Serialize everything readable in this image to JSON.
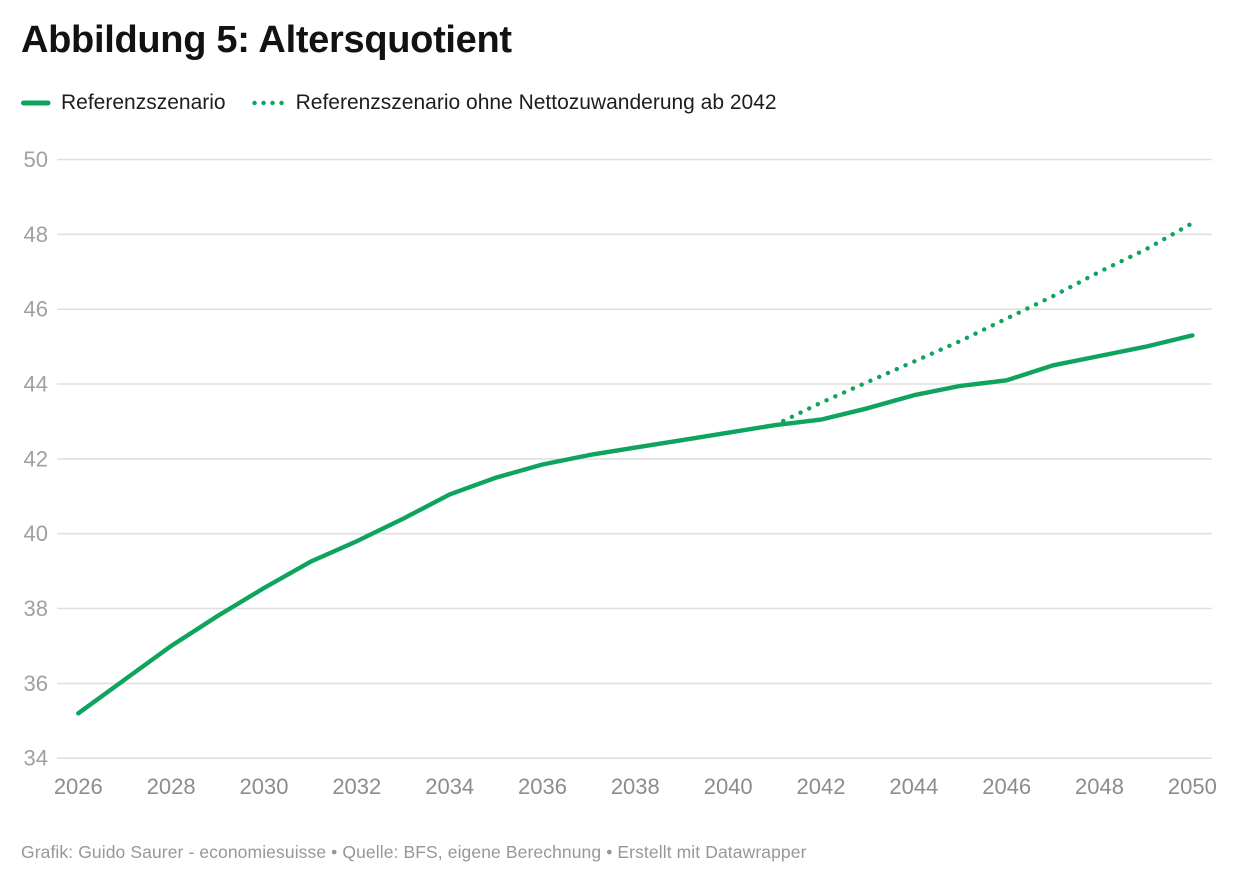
{
  "header": {
    "title": "Abbildung 5: Altersquotient"
  },
  "legend": {
    "items": [
      {
        "label": "Referenzszenario",
        "swatch": "solid-line"
      },
      {
        "label": "Referenzszenario ohne Nettozuwanderung ab 2042",
        "swatch": "dotted-line"
      }
    ]
  },
  "colors": {
    "line_green": "#0fa45e",
    "grid": "#e0e0e0",
    "y_tick_label": "#a0a0a0",
    "x_tick_label": "#8c8c8c",
    "title_text": "#121212",
    "footer_text": "#979797"
  },
  "chart_data": {
    "type": "line",
    "title": "Abbildung 5: Altersquotient",
    "xlabel": "",
    "ylabel": "",
    "ylim": [
      34,
      50
    ],
    "xlim": [
      2026,
      2050
    ],
    "grid": "horizontal-only",
    "legend_position": "top",
    "y_ticks": [
      34,
      36,
      38,
      40,
      42,
      44,
      46,
      48,
      50
    ],
    "x_ticks": [
      2026,
      2028,
      2030,
      2032,
      2034,
      2036,
      2038,
      2040,
      2042,
      2044,
      2046,
      2048,
      2050
    ],
    "series": [
      {
        "name": "Referenzszenario",
        "style": "solid",
        "x": [
          2026,
          2027,
          2028,
          2029,
          2030,
          2031,
          2032,
          2033,
          2034,
          2035,
          2036,
          2037,
          2038,
          2039,
          2040,
          2041,
          2042,
          2043,
          2044,
          2045,
          2046,
          2047,
          2048,
          2049,
          2050
        ],
        "values": [
          35.2,
          36.1,
          37.0,
          37.8,
          38.55,
          39.25,
          39.8,
          40.4,
          41.05,
          41.5,
          41.85,
          42.1,
          42.3,
          42.5,
          42.7,
          42.9,
          43.05,
          43.35,
          43.7,
          43.95,
          44.1,
          44.5,
          44.75,
          45.0,
          45.3
        ]
      },
      {
        "name": "Referenzszenario ohne Nettozuwanderung ab 2042",
        "style": "dotted",
        "x": [
          2041,
          2042,
          2043,
          2044,
          2045,
          2046,
          2047,
          2048,
          2049,
          2050
        ],
        "values": [
          42.9,
          43.5,
          44.05,
          44.6,
          45.15,
          45.75,
          46.35,
          47.0,
          47.6,
          48.3
        ]
      }
    ]
  },
  "footer": {
    "text": "Grafik: Guido Saurer - economiesuisse • Quelle: BFS, eigene Berechnung • Erstellt mit Datawrapper"
  }
}
